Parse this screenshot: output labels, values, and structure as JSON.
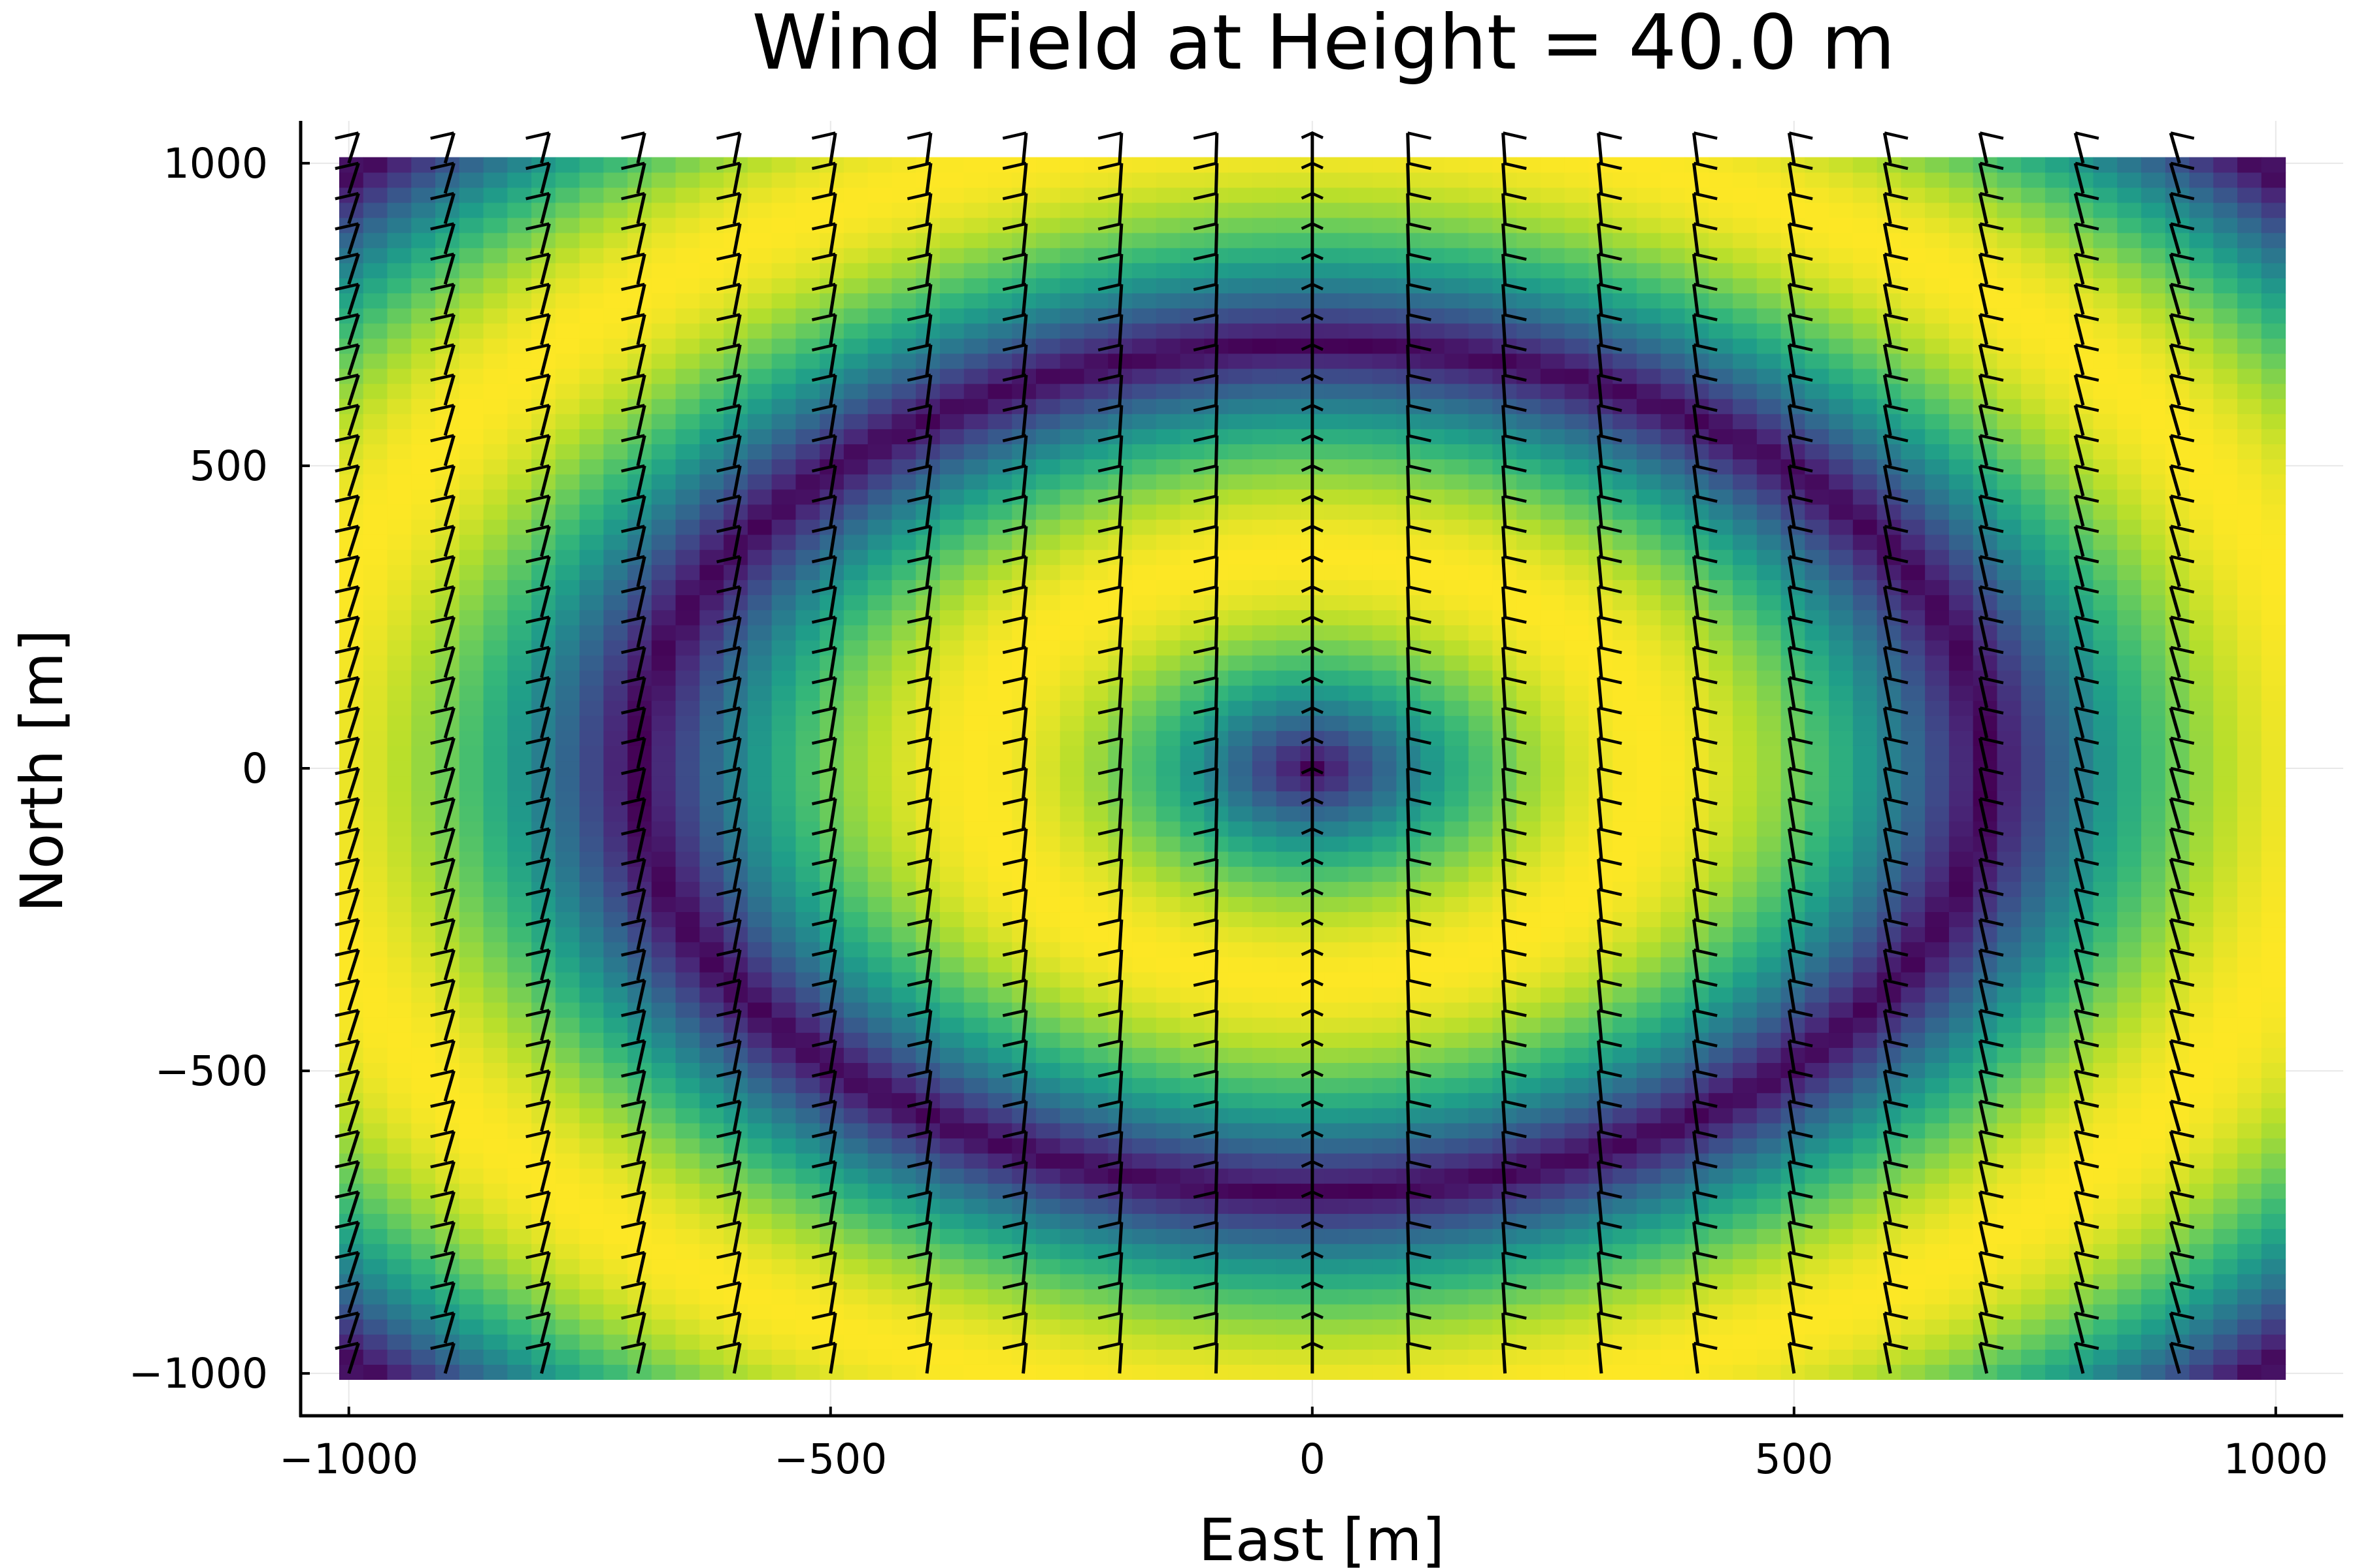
{
  "chart_data": {
    "type": "heatmap",
    "title": "Wind Field at Height = 40.0 m",
    "xlabel": "East [m]",
    "ylabel": "North [m]",
    "xlim": [
      -1050,
      1070
    ],
    "ylim": [
      -1070,
      1070
    ],
    "grid": true,
    "legend": "none",
    "x_ticks": [
      -1000,
      -500,
      0,
      500,
      1000
    ],
    "y_ticks": [
      -1000,
      -500,
      0,
      500,
      1000
    ],
    "x_tick_labels": [
      "−1000",
      "−500",
      "0",
      "500",
      "1000"
    ],
    "y_tick_labels": [
      "−1000",
      "−500",
      "0",
      "500",
      "1000"
    ],
    "heatmap": {
      "x_range": [
        -1010,
        1010
      ],
      "y_range": [
        -1010,
        1010
      ],
      "resolution": 81,
      "field": "wind speed magnitude",
      "colormap": "viridis",
      "value_range": [
        0,
        1
      ],
      "pattern": "radial rings: speed = |sin(pi * r / 700)|, r = sqrt(east^2 + north^2)"
    },
    "quiver": {
      "columns_x": [
        -1000,
        -900,
        -800,
        -700,
        -600,
        -500,
        -400,
        -300,
        -200,
        -100,
        0,
        100,
        200,
        300,
        400,
        500,
        600,
        700,
        800,
        900
      ],
      "rows_y": [
        -1000,
        -950,
        -900,
        -850,
        -800,
        -750,
        -700,
        -650,
        -600,
        -550,
        -500,
        -450,
        -400,
        -350,
        -300,
        -250,
        -200,
        -150,
        -100,
        -50,
        0,
        50,
        100,
        150,
        200,
        250,
        300,
        350,
        400,
        450,
        500,
        550,
        600,
        650,
        700,
        750,
        800,
        850,
        900,
        950,
        1000
      ],
      "arrow_length_m": 50,
      "head_dx_m": 11,
      "head_dy_m": 8,
      "direction": "arrow tips point north and lean toward the centreline (x = 0)"
    },
    "colors": {
      "background": "#ffffff",
      "axes": "#000000",
      "grid": "#e8e8e8",
      "arrows": "#000000"
    }
  }
}
